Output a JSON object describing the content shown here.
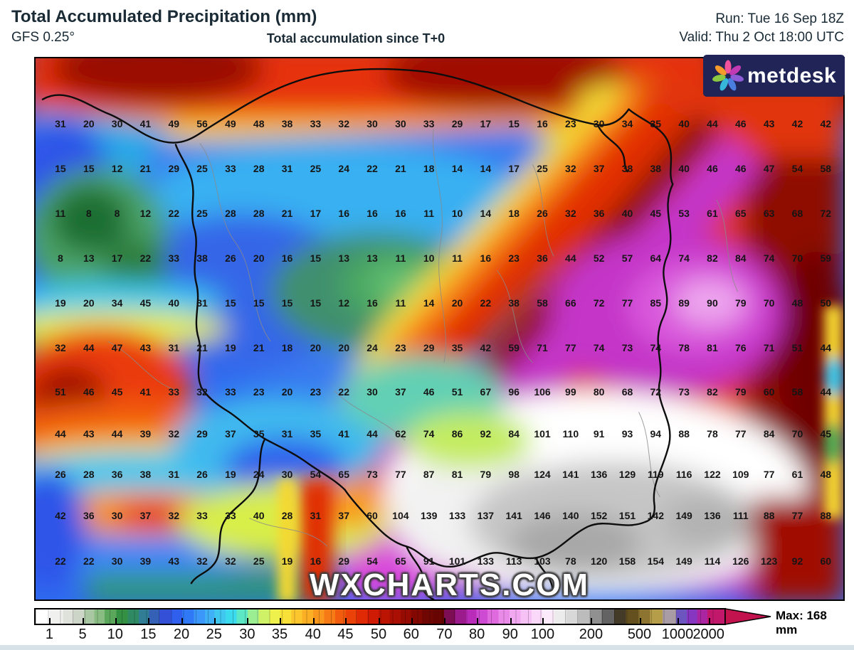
{
  "header": {
    "title": "Total Accumulated Precipitation (mm)",
    "model": "GFS 0.25°",
    "subtitle": "Total accumulation since T+0",
    "run_line": "Run: Tue 16 Sep 18Z",
    "valid_line": "Valid: Thu 2 Oct 18:00 UTC"
  },
  "logo": {
    "text": "metdesk",
    "petal_colors": [
      "#f0529c",
      "#c13ab4",
      "#8c5cd8",
      "#4a7de0",
      "#36b6d9",
      "#8bc943",
      "#f59a2b"
    ]
  },
  "watermark": "WXCHARTS.COM",
  "grid": {
    "rows": [
      [
        31,
        20,
        30,
        41,
        49,
        56,
        49,
        48,
        38,
        33,
        32,
        30,
        30,
        33,
        29,
        17,
        15,
        16,
        23,
        30,
        34,
        35,
        40,
        44,
        46,
        43,
        42,
        42
      ],
      [
        15,
        15,
        12,
        21,
        29,
        25,
        33,
        28,
        31,
        25,
        24,
        22,
        21,
        18,
        14,
        14,
        17,
        25,
        32,
        37,
        38,
        38,
        40,
        46,
        46,
        47,
        54,
        58
      ],
      [
        11,
        8,
        8,
        12,
        22,
        25,
        28,
        28,
        21,
        17,
        16,
        16,
        16,
        11,
        10,
        14,
        18,
        26,
        32,
        36,
        40,
        45,
        53,
        61,
        65,
        63,
        68,
        72
      ],
      [
        8,
        13,
        17,
        22,
        33,
        38,
        26,
        20,
        16,
        15,
        13,
        13,
        11,
        10,
        11,
        16,
        23,
        36,
        44,
        52,
        57,
        64,
        74,
        82,
        84,
        74,
        70,
        59
      ],
      [
        19,
        20,
        34,
        45,
        40,
        31,
        15,
        15,
        15,
        15,
        12,
        16,
        11,
        14,
        20,
        22,
        38,
        58,
        66,
        72,
        77,
        85,
        89,
        90,
        79,
        70,
        48,
        50
      ],
      [
        32,
        44,
        47,
        43,
        31,
        21,
        19,
        21,
        18,
        20,
        20,
        24,
        23,
        29,
        35,
        42,
        59,
        71,
        77,
        74,
        73,
        74,
        78,
        81,
        76,
        71,
        51,
        44
      ],
      [
        51,
        46,
        45,
        41,
        33,
        32,
        33,
        23,
        20,
        23,
        22,
        30,
        37,
        46,
        51,
        67,
        96,
        106,
        99,
        80,
        68,
        72,
        73,
        82,
        79,
        60,
        58,
        44
      ],
      [
        44,
        43,
        44,
        39,
        32,
        29,
        37,
        35,
        31,
        35,
        41,
        44,
        62,
        74,
        86,
        92,
        84,
        101,
        110,
        91,
        93,
        94,
        88,
        78,
        77,
        84,
        70,
        45
      ],
      [
        26,
        28,
        36,
        38,
        31,
        26,
        19,
        24,
        30,
        54,
        65,
        73,
        77,
        87,
        81,
        79,
        98,
        124,
        141,
        136,
        129,
        119,
        116,
        122,
        109,
        77,
        61,
        48
      ],
      [
        42,
        36,
        30,
        37,
        32,
        33,
        33,
        40,
        28,
        31,
        37,
        60,
        104,
        139,
        133,
        137,
        141,
        146,
        140,
        152,
        151,
        142,
        149,
        136,
        111,
        88,
        77,
        88
      ],
      [
        22,
        22,
        30,
        39,
        43,
        32,
        32,
        25,
        19,
        16,
        29,
        54,
        65,
        91,
        101,
        133,
        113,
        103,
        78,
        120,
        158,
        154,
        149,
        114,
        126,
        123,
        92,
        60
      ]
    ]
  },
  "colorbar": {
    "tick_labels": [
      "1",
      "5",
      "10",
      "15",
      "20",
      "25",
      "30",
      "35",
      "40",
      "45",
      "50",
      "60",
      "70",
      "80",
      "90",
      "100",
      "200",
      "500",
      "1000",
      "2000"
    ],
    "tick_percents": [
      2.2,
      7,
      11.7,
      16.5,
      21.3,
      26,
      30.8,
      35.5,
      40.3,
      45,
      49.8,
      54.5,
      59.3,
      64,
      68.8,
      73.5,
      80.5,
      87.5,
      93,
      97.5
    ],
    "max_label": "Max: 168 mm",
    "arrow_color": "#c3134e",
    "gradient_stops": [
      [
        "#ffffff",
        2
      ],
      [
        "#f0f0ee",
        4
      ],
      [
        "#dfe2db",
        5.5
      ],
      [
        "#cdd4c8",
        7
      ],
      [
        "#aac7a4",
        8.5
      ],
      [
        "#88bc82",
        10
      ],
      [
        "#5aa75c",
        11.7
      ],
      [
        "#349144",
        13.4
      ],
      [
        "#2f8a64",
        15
      ],
      [
        "#327d96",
        16.5
      ],
      [
        "#3460b6",
        18
      ],
      [
        "#3350d6",
        19.7
      ],
      [
        "#2f5fec",
        21.3
      ],
      [
        "#2f78f6",
        23
      ],
      [
        "#3c97fa",
        24.6
      ],
      [
        "#3fb0f5",
        26
      ],
      [
        "#3fc7f0",
        27.6
      ],
      [
        "#3cdaed",
        29.2
      ],
      [
        "#5ce8c4",
        30.8
      ],
      [
        "#9cee92",
        32.4
      ],
      [
        "#cff168",
        34
      ],
      [
        "#eef14c",
        35.5
      ],
      [
        "#f9e038",
        37.1
      ],
      [
        "#fcc72e",
        38.7
      ],
      [
        "#fbaf25",
        40.3
      ],
      [
        "#f9961d",
        41.9
      ],
      [
        "#f67a15",
        43.5
      ],
      [
        "#f25c0e",
        45
      ],
      [
        "#eb420a",
        46.6
      ],
      [
        "#e02905",
        48.2
      ],
      [
        "#cf1a04",
        49.8
      ],
      [
        "#bc1403",
        51.4
      ],
      [
        "#a90f02",
        53
      ],
      [
        "#960b02",
        54.5
      ],
      [
        "#820801",
        56.1
      ],
      [
        "#700601",
        57.7
      ],
      [
        "#660501",
        59.3
      ],
      [
        "#7e0e54",
        60.9
      ],
      [
        "#9b1a8c",
        62.5
      ],
      [
        "#b92cba",
        64
      ],
      [
        "#ce4ad2",
        65.6
      ],
      [
        "#de6ade",
        67.2
      ],
      [
        "#e98ae9",
        68.8
      ],
      [
        "#f1a8f1",
        70.4
      ],
      [
        "#f6c2f6",
        72
      ],
      [
        "#fad8fa",
        73.5
      ],
      [
        "#fbeafa",
        75.3
      ],
      [
        "#ececec",
        77
      ],
      [
        "#d8d8d8",
        78.7
      ],
      [
        "#bcbcbc",
        80.5
      ],
      [
        "#909090",
        82.2
      ],
      [
        "#636363",
        84
      ],
      [
        "#433a28",
        85.7
      ],
      [
        "#64501f",
        87.5
      ],
      [
        "#8d7531",
        89.2
      ],
      [
        "#b69d49",
        91
      ],
      [
        "#a99ca5",
        93
      ],
      [
        "#6c55be",
        94.5
      ],
      [
        "#8636c0",
        96
      ],
      [
        "#aa25a2",
        97.5
      ],
      [
        "#c2186c",
        100
      ]
    ]
  }
}
